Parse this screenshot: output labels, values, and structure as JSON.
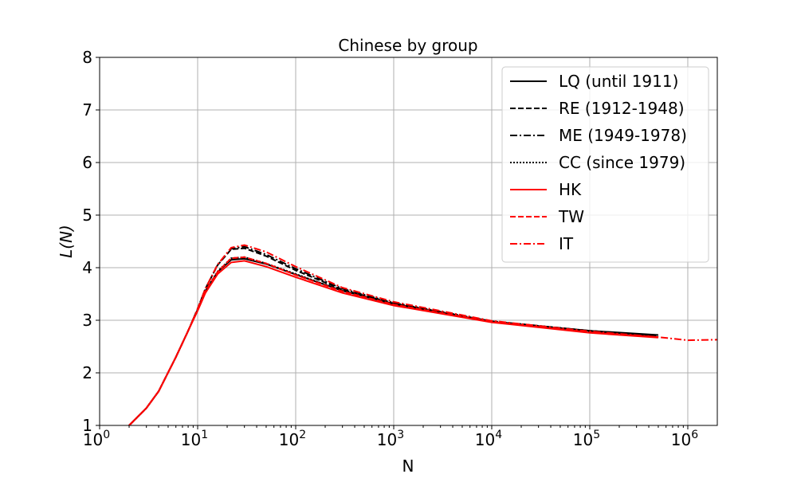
{
  "chart_data": {
    "type": "line",
    "title": "Chinese by group",
    "xlabel": "N",
    "ylabel": "L(N)",
    "xscale": "log",
    "xlim": [
      1,
      2000000
    ],
    "ylim": [
      1,
      8
    ],
    "grid": true,
    "legend_position": "top-right",
    "xticks": [
      {
        "base": "10",
        "exp": "0"
      },
      {
        "base": "10",
        "exp": "1"
      },
      {
        "base": "10",
        "exp": "2"
      },
      {
        "base": "10",
        "exp": "3"
      },
      {
        "base": "10",
        "exp": "4"
      },
      {
        "base": "10",
        "exp": "5"
      },
      {
        "base": "10",
        "exp": "6"
      }
    ],
    "yticks": [
      "1",
      "2",
      "3",
      "4",
      "5",
      "6",
      "7",
      "8"
    ],
    "series": [
      {
        "name": "LQ (until 1911)",
        "color": "#000000",
        "dash": "solid",
        "x": [
          2,
          3,
          4,
          6,
          8,
          10,
          12,
          16,
          22,
          30,
          50,
          100,
          300,
          1000,
          10000,
          100000,
          500000
        ],
        "y": [
          1.0,
          1.33,
          1.65,
          2.3,
          2.8,
          3.2,
          3.55,
          3.92,
          4.15,
          4.17,
          4.07,
          3.87,
          3.56,
          3.31,
          2.97,
          2.8,
          2.72
        ]
      },
      {
        "name": "RE (1912-1948)",
        "color": "#000000",
        "dash": "dashed",
        "x": [
          2,
          3,
          4,
          6,
          8,
          10,
          12,
          16,
          22,
          30,
          50,
          100,
          300,
          1000,
          10000,
          100000,
          500000
        ],
        "y": [
          1.0,
          1.33,
          1.65,
          2.3,
          2.8,
          3.22,
          3.6,
          4.05,
          4.35,
          4.37,
          4.22,
          3.95,
          3.58,
          3.32,
          2.98,
          2.8,
          2.7
        ]
      },
      {
        "name": "ME (1949-1978)",
        "color": "#000000",
        "dash": "dashdot",
        "x": [
          2,
          3,
          4,
          6,
          8,
          10,
          12,
          16,
          22,
          30,
          50,
          100,
          300,
          1000,
          10000,
          100000,
          500000
        ],
        "y": [
          1.0,
          1.33,
          1.65,
          2.3,
          2.8,
          3.22,
          3.6,
          4.06,
          4.36,
          4.4,
          4.25,
          3.98,
          3.6,
          3.33,
          2.98,
          2.8,
          2.7
        ]
      },
      {
        "name": "CC (since 1979)",
        "color": "#000000",
        "dash": "dotted",
        "x": [
          2,
          3,
          4,
          6,
          8,
          10,
          12,
          16,
          22,
          30,
          50,
          100,
          300,
          1000,
          10000,
          100000,
          500000
        ],
        "y": [
          1.0,
          1.33,
          1.65,
          2.3,
          2.8,
          3.2,
          3.56,
          3.93,
          4.18,
          4.2,
          4.08,
          3.88,
          3.56,
          3.31,
          2.97,
          2.79,
          2.7
        ]
      },
      {
        "name": "HK",
        "color": "#ff0000",
        "dash": "solid",
        "x": [
          2,
          3,
          4,
          6,
          8,
          10,
          12,
          16,
          22,
          30,
          50,
          100,
          300,
          1000,
          10000,
          100000,
          500000
        ],
        "y": [
          1.0,
          1.33,
          1.65,
          2.3,
          2.8,
          3.18,
          3.52,
          3.88,
          4.1,
          4.13,
          4.02,
          3.82,
          3.52,
          3.28,
          2.96,
          2.76,
          2.67
        ]
      },
      {
        "name": "TW",
        "color": "#ff0000",
        "dash": "dashed",
        "x": [
          2,
          3,
          4,
          6,
          8,
          10,
          12,
          16,
          22,
          30,
          50,
          100,
          300,
          1000,
          10000,
          100000,
          500000
        ],
        "y": [
          1.0,
          1.33,
          1.65,
          2.3,
          2.8,
          3.2,
          3.55,
          3.92,
          4.18,
          4.2,
          4.08,
          3.86,
          3.55,
          3.3,
          2.97,
          2.77,
          2.68
        ]
      },
      {
        "name": "IT",
        "color": "#ff0000",
        "dash": "dashdot",
        "x": [
          2,
          3,
          4,
          6,
          8,
          10,
          12,
          16,
          22,
          30,
          50,
          100,
          300,
          1000,
          10000,
          100000,
          500000,
          1000000,
          2000000
        ],
        "y": [
          1.0,
          1.33,
          1.65,
          2.3,
          2.8,
          3.22,
          3.6,
          4.06,
          4.38,
          4.43,
          4.3,
          4.02,
          3.62,
          3.35,
          2.99,
          2.79,
          2.68,
          2.62,
          2.63
        ]
      }
    ]
  }
}
